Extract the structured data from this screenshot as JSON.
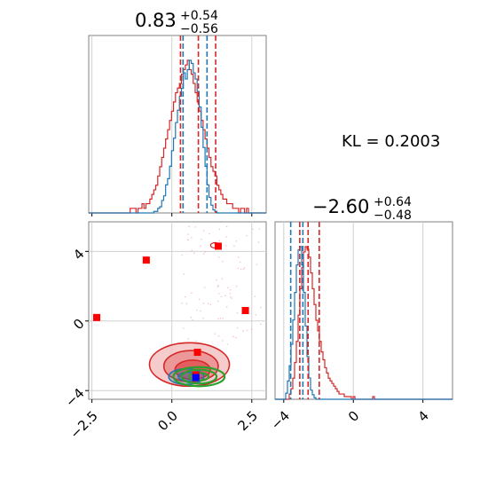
{
  "chart_data": {
    "type": "corner",
    "colors": {
      "blue": "#1f77b4",
      "red": "#d62728",
      "green": "#2ca02c",
      "marker_red": "#ff0000",
      "marker_blue": "#0000ff",
      "grid": "#d0d0d0"
    },
    "annotation": {
      "kl_text": "KL = 0.2003"
    },
    "param1": {
      "title": {
        "value": "0.83",
        "plus": "+0.54",
        "minus": "−0.56"
      },
      "range": [
        -2.6,
        2.95
      ],
      "ticks": [
        -2.5,
        0.0,
        2.5
      ],
      "tick_labels": [
        "−2.5",
        "0.0",
        "2.5"
      ],
      "blue_quantiles": [
        0.35,
        1.1
      ],
      "red_quantiles": [
        0.27,
        0.83,
        1.37
      ]
    },
    "param2": {
      "title": {
        "value": "−2.60",
        "plus": "+0.64",
        "minus": "−0.48"
      },
      "range": [
        -4.5,
        5.7
      ],
      "ticks": [
        -4,
        0,
        4
      ],
      "tick_labels": [
        "−4",
        "0",
        "4"
      ],
      "blue_quantiles": [
        -3.6,
        -2.9
      ],
      "red_quantiles": [
        -3.08,
        -2.6,
        -1.96
      ]
    },
    "hist1_blue": [
      0,
      0,
      0,
      0,
      0,
      0,
      0,
      0,
      0,
      0,
      0,
      0,
      0,
      0,
      0,
      0,
      0,
      0,
      0,
      0,
      0,
      0,
      0,
      0,
      0,
      0,
      0,
      0,
      0,
      0,
      0,
      0,
      0,
      1,
      1,
      3,
      4,
      8,
      11,
      18,
      22,
      30,
      40,
      48,
      58,
      66,
      75,
      80,
      90,
      86,
      92,
      98,
      96,
      90,
      86,
      78,
      68,
      55,
      42,
      30,
      18,
      10,
      5,
      2,
      1,
      0,
      0,
      0,
      0,
      0,
      0,
      0,
      0,
      0,
      0,
      0,
      0,
      0,
      0,
      0,
      0,
      0,
      0,
      0,
      0,
      0,
      0,
      0,
      0,
      0
    ],
    "hist1_red": [
      0,
      0,
      0,
      0,
      0,
      0,
      0,
      0,
      0,
      0,
      0,
      0,
      0,
      0,
      0,
      0,
      0,
      0,
      0,
      0,
      0,
      1,
      1,
      1,
      0,
      1,
      1,
      2,
      1,
      2,
      2,
      3,
      4,
      5,
      6,
      8,
      10,
      12,
      14,
      16,
      18,
      20,
      22,
      24,
      26,
      27,
      28,
      30,
      31,
      32,
      33,
      31,
      30,
      28,
      26,
      24,
      22,
      20,
      18,
      16,
      14,
      12,
      10,
      9,
      8,
      6,
      5,
      4,
      3,
      3,
      2,
      2,
      2,
      1,
      1,
      1,
      0,
      1,
      1,
      0,
      1,
      0,
      0,
      0,
      0,
      0,
      0,
      0,
      0,
      0
    ],
    "hist2_blue": [
      0,
      0,
      0,
      0,
      0,
      0,
      4,
      12,
      22,
      36,
      52,
      70,
      88,
      98,
      100,
      88,
      70,
      48,
      28,
      14,
      6,
      3,
      1,
      0,
      0,
      0,
      0,
      0,
      0,
      0,
      0,
      0,
      0,
      0,
      0,
      0,
      0,
      0,
      0,
      0,
      0,
      0,
      0,
      0,
      0,
      0,
      0,
      0,
      0,
      0,
      0,
      0,
      0,
      0,
      0,
      0,
      0,
      0,
      0,
      0,
      0,
      0,
      0,
      0,
      0,
      0,
      0,
      0,
      0,
      0,
      0,
      0,
      0,
      0,
      0,
      0,
      0,
      0,
      0,
      0,
      0,
      0,
      0,
      0,
      0,
      0,
      0,
      0,
      0,
      0,
      0,
      0,
      0,
      0,
      0,
      0,
      0,
      0,
      0,
      0
    ],
    "hist2_red": [
      0,
      0,
      0,
      0,
      0,
      0,
      0,
      0,
      2,
      4,
      8,
      14,
      22,
      32,
      42,
      50,
      56,
      58,
      57,
      54,
      48,
      42,
      36,
      30,
      26,
      22,
      18,
      15,
      12,
      10,
      8,
      7,
      6,
      5,
      4,
      3,
      2,
      2,
      2,
      1,
      1,
      1,
      1,
      0,
      1,
      0,
      0,
      0,
      0,
      0,
      0,
      0,
      0,
      0,
      0,
      1,
      0,
      0,
      0,
      0,
      0,
      0,
      0,
      0,
      0,
      0,
      0,
      0,
      0,
      0,
      0,
      0,
      0,
      0,
      0,
      0,
      0,
      0,
      0,
      0,
      0,
      0,
      0,
      0,
      0,
      0,
      0,
      0,
      0,
      0,
      0,
      0,
      0,
      0,
      0,
      0,
      0,
      0,
      0,
      0
    ],
    "scatter_markers_red": [
      [
        -2.35,
        0.2
      ],
      [
        -0.8,
        3.5
      ],
      [
        2.3,
        0.6
      ],
      [
        1.45,
        4.3
      ],
      [
        0.8,
        -1.8
      ],
      [
        0.75,
        -3.1
      ]
    ],
    "scatter_marker_blue": [
      0.75,
      -3.25
    ],
    "red_contours": [
      {
        "cx": 0.55,
        "cy": -2.5,
        "rx": 1.25,
        "ry": 1.25
      },
      {
        "cx": 0.6,
        "cy": -2.6,
        "rx": 0.85,
        "ry": 0.9
      },
      {
        "cx": 0.65,
        "cy": -2.8,
        "rx": 0.55,
        "ry": 0.55
      }
    ],
    "blue_contours": [
      {
        "cx": 0.45,
        "cy": -3.2,
        "rx": 0.55,
        "ry": 0.45
      },
      {
        "cx": 0.5,
        "cy": -3.2,
        "rx": 0.3,
        "ry": 0.25
      }
    ],
    "green_contours": [
      {
        "cx": 0.85,
        "cy": -3.2,
        "rx": 0.8,
        "ry": 0.55
      },
      {
        "cx": 0.85,
        "cy": -3.2,
        "rx": 0.55,
        "ry": 0.4
      },
      {
        "cx": 0.85,
        "cy": -3.2,
        "rx": 0.3,
        "ry": 0.22
      }
    ]
  }
}
